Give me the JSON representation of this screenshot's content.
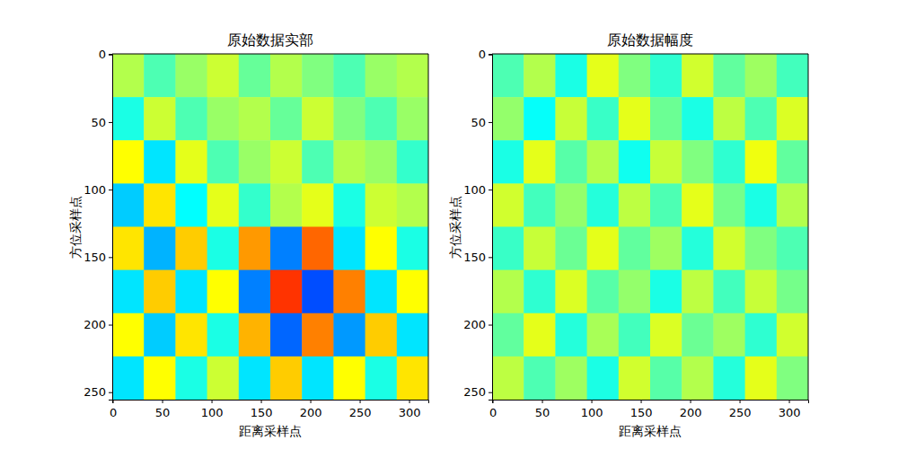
{
  "chart_data": [
    {
      "type": "heatmap",
      "title": "原始数据实部",
      "xlabel": "距离采样点",
      "ylabel": "方位采样点",
      "xlim": [
        -0.5,
        319.5
      ],
      "ylim": [
        255.5,
        -0.5
      ],
      "xticks": [
        0,
        50,
        100,
        150,
        200,
        250,
        300
      ],
      "yticks": [
        0,
        50,
        100,
        150,
        200,
        250
      ],
      "color": "jet",
      "zlim": [
        -1,
        1
      ],
      "x_edges": [
        -0.5,
        31.5,
        63.5,
        95.5,
        127.5,
        159.5,
        191.5,
        223.5,
        255.5,
        287.5,
        319.5
      ],
      "y_edges": [
        -0.5,
        31.5,
        63.5,
        95.5,
        127.5,
        159.5,
        191.5,
        223.5,
        255.5
      ],
      "cells": [
        [
          0.1,
          -0.1,
          0.05,
          0.15,
          -0.05,
          0.1,
          0.0,
          -0.1,
          0.05,
          0.1
        ],
        [
          -0.2,
          0.15,
          -0.1,
          0.05,
          0.1,
          -0.05,
          0.15,
          0.0,
          -0.1,
          0.05
        ],
        [
          0.25,
          -0.3,
          0.2,
          -0.1,
          0.05,
          0.15,
          -0.1,
          0.1,
          0.05,
          -0.15
        ],
        [
          -0.35,
          0.3,
          -0.25,
          0.2,
          -0.15,
          0.1,
          0.2,
          -0.2,
          0.15,
          0.1
        ],
        [
          0.3,
          -0.4,
          0.35,
          -0.2,
          0.45,
          -0.5,
          0.55,
          -0.3,
          0.25,
          -0.2
        ],
        [
          -0.3,
          0.35,
          -0.3,
          0.25,
          -0.5,
          0.65,
          -0.6,
          0.5,
          -0.3,
          0.25
        ],
        [
          0.25,
          -0.35,
          0.3,
          -0.2,
          0.4,
          -0.55,
          0.5,
          -0.45,
          0.35,
          -0.3
        ],
        [
          -0.3,
          0.25,
          -0.2,
          0.15,
          -0.3,
          0.35,
          -0.3,
          0.25,
          -0.2,
          0.3
        ]
      ]
    },
    {
      "type": "heatmap",
      "title": "原始数据幅度",
      "xlabel": "距离采样点",
      "ylabel": "方位采样点",
      "xlim": [
        -0.5,
        319.5
      ],
      "ylim": [
        255.5,
        -0.5
      ],
      "xticks": [
        0,
        50,
        100,
        150,
        200,
        250,
        300
      ],
      "yticks": [
        0,
        50,
        100,
        150,
        200,
        250
      ],
      "color": "jet",
      "zlim": [
        0,
        1
      ],
      "x_edges": [
        -0.5,
        31.5,
        63.5,
        95.5,
        127.5,
        159.5,
        191.5,
        223.5,
        255.5,
        287.5,
        319.5
      ],
      "y_edges": [
        -0.5,
        31.5,
        63.5,
        95.5,
        127.5,
        159.5,
        191.5,
        223.5,
        255.5
      ],
      "cells": [
        [
          0.45,
          0.55,
          0.4,
          0.6,
          0.5,
          0.42,
          0.58,
          0.47,
          0.53,
          0.44
        ],
        [
          0.52,
          0.38,
          0.57,
          0.43,
          0.6,
          0.48,
          0.4,
          0.56,
          0.45,
          0.59
        ],
        [
          0.4,
          0.6,
          0.46,
          0.55,
          0.39,
          0.57,
          0.5,
          0.42,
          0.61,
          0.47
        ],
        [
          0.58,
          0.44,
          0.52,
          0.41,
          0.56,
          0.45,
          0.6,
          0.49,
          0.4,
          0.55
        ],
        [
          0.43,
          0.57,
          0.48,
          0.6,
          0.47,
          0.53,
          0.41,
          0.58,
          0.5,
          0.45
        ],
        [
          0.55,
          0.42,
          0.59,
          0.46,
          0.52,
          0.4,
          0.56,
          0.44,
          0.57,
          0.49
        ],
        [
          0.47,
          0.6,
          0.41,
          0.54,
          0.44,
          0.59,
          0.48,
          0.53,
          0.42,
          0.58
        ],
        [
          0.56,
          0.45,
          0.53,
          0.4,
          0.58,
          0.46,
          0.55,
          0.41,
          0.6,
          0.5
        ]
      ]
    }
  ]
}
